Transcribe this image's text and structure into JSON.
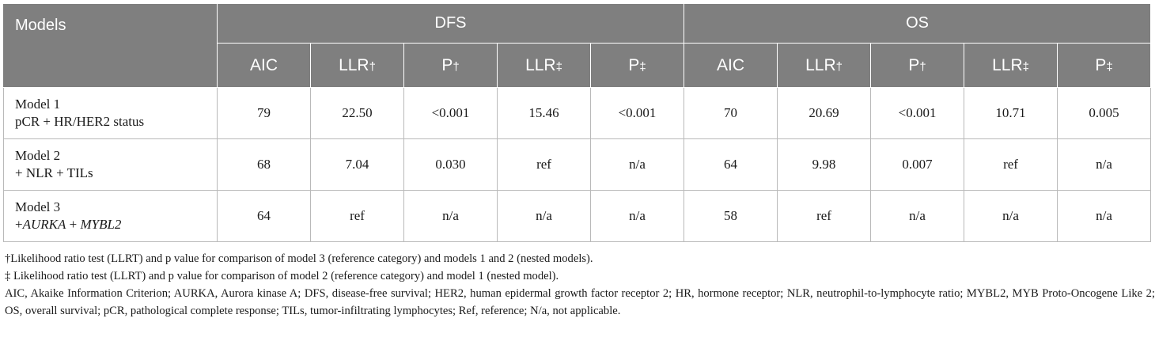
{
  "header": {
    "models_label": "Models",
    "groups": [
      "DFS",
      "OS"
    ],
    "sub_columns": [
      {
        "base": "AIC",
        "mark": ""
      },
      {
        "base": "LLR",
        "mark": "†"
      },
      {
        "base": "P",
        "mark": "†"
      },
      {
        "base": "LLR",
        "mark": "‡"
      },
      {
        "base": "P",
        "mark": "‡"
      },
      {
        "base": "AIC",
        "mark": ""
      },
      {
        "base": "LLR",
        "mark": "†"
      },
      {
        "base": "P",
        "mark": "†"
      },
      {
        "base": "LLR",
        "mark": "‡"
      },
      {
        "base": "P",
        "mark": "‡"
      }
    ]
  },
  "rows": [
    {
      "title": "Model 1",
      "desc": "pCR + HR/HER2 status",
      "values": [
        "79",
        "22.50",
        "<0.001",
        "15.46",
        "<0.001",
        "70",
        "20.69",
        "<0.001",
        "10.71",
        "0.005"
      ]
    },
    {
      "title": "Model 2",
      "desc": "+ NLR + TILs",
      "values": [
        "68",
        "7.04",
        "0.030",
        "ref",
        "n/a",
        "64",
        "9.98",
        "0.007",
        "ref",
        "n/a"
      ]
    },
    {
      "title": "Model 3",
      "desc_prefix": "+",
      "gene1": "AURKA",
      "desc_mid": " + ",
      "gene2": "MYBL2",
      "values": [
        "64",
        "ref",
        "n/a",
        "n/a",
        "n/a",
        "58",
        "ref",
        "n/a",
        "n/a",
        "n/a"
      ]
    }
  ],
  "footnotes": {
    "dagger": "†Likelihood ratio test (LLRT) and p value for comparison of model 3 (reference category) and models 1 and 2 (nested models).",
    "double_dagger": "‡ Likelihood ratio test (LLRT) and p value for comparison of model 2 (reference category) and model 1 (nested model).",
    "abbreviations": "AIC, Akaike Information Criterion; AURKA, Aurora kinase A; DFS, disease-free survival; HER2, human epidermal growth factor receptor 2; HR, hormone receptor; NLR, neutrophil-to-lymphocyte ratio; MYBL2, MYB Proto-Oncogene Like 2; OS, overall survival; pCR, pathological complete response; TILs, tumor-infiltrating lymphocytes; Ref, reference; N/a, not applicable."
  }
}
